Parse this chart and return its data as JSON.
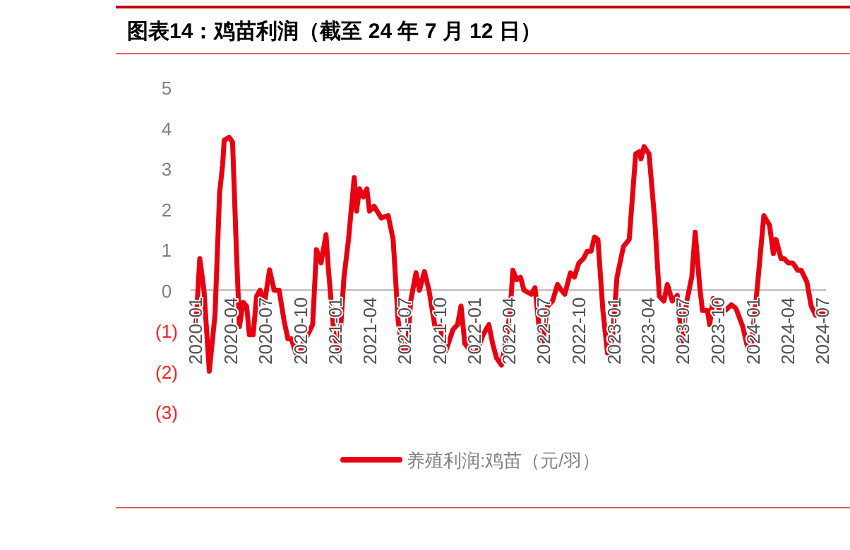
{
  "chart_data": {
    "type": "line",
    "title": "图表14：鸡苗利润（截至 24 年 7 月 12 日）",
    "legend": "bottom",
    "xlim": [
      "2019-12-20",
      "2024-07-12"
    ],
    "xticks": [
      {
        "value": "2020-01",
        "label": "2020-01"
      },
      {
        "value": "2020-04",
        "label": "2020-04"
      },
      {
        "value": "2020-07",
        "label": "2020-07"
      },
      {
        "value": "2020-10",
        "label": "2020-10"
      },
      {
        "value": "2021-01",
        "label": "2021-01"
      },
      {
        "value": "2021-04",
        "label": "2021-04"
      },
      {
        "value": "2021-07",
        "label": "2021-07"
      },
      {
        "value": "2021-10",
        "label": "2021-10"
      },
      {
        "value": "2022-01",
        "label": "2022-01"
      },
      {
        "value": "2022-04",
        "label": "2022-04"
      },
      {
        "value": "2022-07",
        "label": "2022-07"
      },
      {
        "value": "2022-10",
        "label": "2022-10"
      },
      {
        "value": "2023-01",
        "label": "2023-01"
      },
      {
        "value": "2023-04",
        "label": "2023-04"
      },
      {
        "value": "2023-07",
        "label": "2023-07"
      },
      {
        "value": "2023-10",
        "label": "2023-10"
      },
      {
        "value": "2024-01",
        "label": "2024-01"
      },
      {
        "value": "2024-04",
        "label": "2024-04"
      },
      {
        "value": "2024-07",
        "label": "2024-07"
      }
    ],
    "ylim": [
      -3,
      5
    ],
    "yticks": [
      5,
      4,
      3,
      2,
      1,
      0,
      {
        "value": -1,
        "label": "(1)"
      },
      {
        "value": -2,
        "label": "(2)"
      },
      {
        "value": -3,
        "label": "(3)"
      }
    ],
    "x": [
      "2020-01-03",
      "2020-01-13",
      "2020-01-24",
      "2020-02-07",
      "2020-02-22",
      "2020-03-05",
      "2020-03-13",
      "2020-03-17",
      "2020-03-30",
      "2020-04-08",
      "2020-04-18",
      "2020-04-26",
      "2020-05-06",
      "2020-05-15",
      "2020-05-22",
      "2020-06-01",
      "2020-06-10",
      "2020-06-19",
      "2020-07-01",
      "2020-07-14",
      "2020-07-26",
      "2020-08-08",
      "2020-08-21",
      "2020-08-31",
      "2020-09-09",
      "2020-09-21",
      "2020-10-01",
      "2020-10-10",
      "2020-10-22",
      "2020-11-04",
      "2020-11-14",
      "2020-11-26",
      "2020-12-09",
      "2020-12-15",
      "2020-12-30",
      "2021-01-12",
      "2021-01-25",
      "2021-02-06",
      "2021-02-21",
      "2021-02-27",
      "2021-03-07",
      "2021-03-17",
      "2021-03-26",
      "2021-04-02",
      "2021-04-14",
      "2021-05-03",
      "2021-05-21",
      "2021-06-03",
      "2021-06-16",
      "2021-06-28",
      "2021-07-10",
      "2021-07-19",
      "2021-08-02",
      "2021-08-11",
      "2021-08-24",
      "2021-09-05",
      "2021-09-22",
      "2021-10-04",
      "2021-10-19",
      "2021-11-07",
      "2021-11-19",
      "2021-11-28",
      "2021-12-08",
      "2021-12-27",
      "2022-01-09",
      "2022-01-25",
      "2022-02-09",
      "2022-02-19",
      "2022-03-01",
      "2022-03-14",
      "2022-03-26",
      "2022-04-05",
      "2022-04-13",
      "2022-04-23",
      "2022-05-03",
      "2022-05-12",
      "2022-05-31",
      "2022-06-10",
      "2022-06-22",
      "2022-07-01",
      "2022-07-13",
      "2022-07-26",
      "2022-08-08",
      "2022-08-18",
      "2022-08-27",
      "2022-09-11",
      "2022-09-21",
      "2022-10-03",
      "2022-10-15",
      "2022-10-25",
      "2022-11-04",
      "2022-11-13",
      "2022-11-22",
      "2022-12-05",
      "2022-12-17",
      "2022-12-30",
      "2023-01-11",
      "2023-01-28",
      "2023-02-12",
      "2023-03-01",
      "2023-03-11",
      "2023-03-15",
      "2023-03-23",
      "2023-04-05",
      "2023-04-20",
      "2023-05-02",
      "2023-05-14",
      "2023-05-23",
      "2023-06-05",
      "2023-06-18",
      "2023-07-01",
      "2023-07-13",
      "2023-07-26",
      "2023-08-04",
      "2023-08-16",
      "2023-08-23",
      "2023-09-05",
      "2023-09-11",
      "2023-09-20",
      "2023-10-06",
      "2023-10-22",
      "2023-11-07",
      "2023-11-19",
      "2023-12-07",
      "2023-12-20",
      "2023-12-30",
      "2024-01-14",
      "2024-01-31",
      "2024-02-15",
      "2024-02-25",
      "2024-03-03",
      "2024-03-16",
      "2024-03-24",
      "2024-04-04",
      "2024-04-16",
      "2024-04-29",
      "2024-05-08",
      "2024-05-23",
      "2024-06-03",
      "2024-06-15",
      "2024-06-27",
      "2024-07-04"
    ],
    "series": [
      {
        "name": "养殖利润:鸡苗（元/羽）",
        "color": "#e60012",
        "values": [
          -0.85,
          0.78,
          0,
          -2.0,
          -0.6,
          2.4,
          3.1,
          3.7,
          3.77,
          3.65,
          1.0,
          -0.9,
          -0.3,
          -0.4,
          -1.1,
          -1.1,
          -0.15,
          0,
          -0.3,
          0.5,
          0,
          0,
          -0.75,
          -1.2,
          -1.2,
          -1.55,
          -1.55,
          -1.3,
          -1.1,
          -0.85,
          1.0,
          0.67,
          1.37,
          0.55,
          -1.1,
          -1.55,
          0.3,
          1.25,
          2.78,
          1.95,
          2.5,
          2.3,
          2.5,
          1.95,
          2.07,
          1.78,
          1.84,
          1.25,
          -0.74,
          -1.55,
          -1.5,
          -0.27,
          0.43,
          0,
          0.46,
          0,
          -0.97,
          -0.9,
          -1.5,
          -0.97,
          -0.85,
          -0.39,
          -1.32,
          -1.55,
          -1.5,
          -1.1,
          -0.85,
          -1.32,
          -1.67,
          -1.85,
          -1.2,
          -0.62,
          0.49,
          0.26,
          0.32,
          0,
          -0.1,
          0.06,
          -1.03,
          -1.26,
          -0.39,
          -0.27,
          0.14,
          0,
          -0.1,
          0.43,
          0.32,
          0.67,
          0.78,
          0.96,
          0.96,
          1.31,
          1.25,
          -0.5,
          -1.55,
          -1.2,
          0.32,
          1.08,
          1.25,
          3.36,
          3.42,
          3.24,
          3.54,
          3.36,
          1.72,
          -0.15,
          -0.27,
          0.14,
          -0.27,
          -0.13,
          -1.26,
          -0.27,
          0.32,
          1.43,
          0.08,
          -0.5,
          -0.5,
          -0.85,
          -0.21,
          -0.45,
          -0.5,
          -0.36,
          -0.45,
          -0.91,
          -1.44,
          -1.32,
          0.08,
          1.84,
          1.6,
          0.9,
          1.25,
          0.78,
          0.78,
          0.67,
          0.67,
          0.49,
          0.49,
          0.2,
          -0.39,
          -0.62,
          -0.5,
          -0.56
        ]
      }
    ]
  }
}
